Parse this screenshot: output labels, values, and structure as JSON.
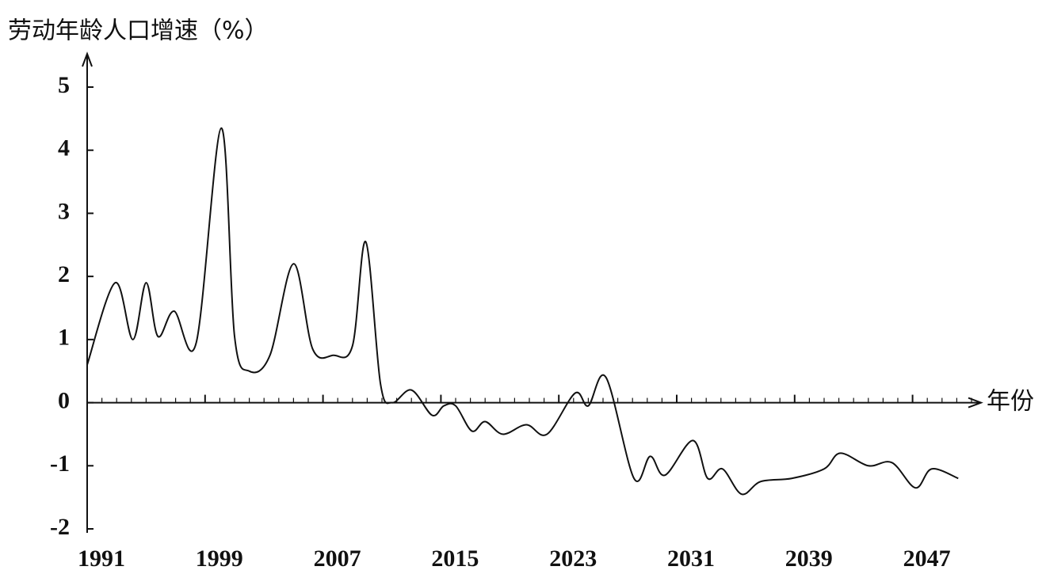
{
  "chart_data": {
    "type": "line",
    "ylabel": "劳动年龄人口增速（%）",
    "xlabel": "年份",
    "xlim": [
      1991,
      2051
    ],
    "xticks": [
      1991,
      1999,
      2007,
      2015,
      2023,
      2031,
      2039,
      2047
    ],
    "ylim": [
      -2,
      5
    ],
    "yticks": [
      -2,
      -1,
      0,
      1,
      2,
      3,
      4,
      5
    ],
    "grid": false,
    "series": [
      {
        "color": "#111111",
        "x": [
          1991,
          1992.9,
          1994.1,
          1995.0,
          1995.8,
          1996.9,
          1998.4,
          2000.1,
          2001.0,
          2002.0,
          2003.4,
          2005.0,
          2006.3,
          2007.7,
          2009.0,
          2009.9,
          2010.9,
          2011.7,
          2013.0,
          2014.4,
          2015.2,
          2016.0,
          2017.1,
          2018.0,
          2019.2,
          2020.8,
          2022.2,
          2024.1,
          2025.0,
          2026.2,
          2028.1,
          2029.2,
          2030.2,
          2032.1,
          2033.1,
          2034.1,
          2035.4,
          2036.7,
          2038.8,
          2041.0,
          2042.1,
          2044.0,
          2045.6,
          2047.2,
          2048.3,
          2050.1
        ],
        "values": [
          0.6,
          1.9,
          1.0,
          1.9,
          1.05,
          1.45,
          0.95,
          4.35,
          1.05,
          0.5,
          0.75,
          2.2,
          0.85,
          0.75,
          0.9,
          2.55,
          0.3,
          0.0,
          0.2,
          -0.2,
          -0.05,
          -0.05,
          -0.45,
          -0.3,
          -0.5,
          -0.35,
          -0.5,
          0.15,
          -0.05,
          0.4,
          -1.2,
          -0.85,
          -1.15,
          -0.6,
          -1.2,
          -1.05,
          -1.45,
          -1.25,
          -1.2,
          -1.05,
          -0.8,
          -1.0,
          -0.95,
          -1.35,
          -1.05,
          -1.2
        ]
      }
    ]
  }
}
